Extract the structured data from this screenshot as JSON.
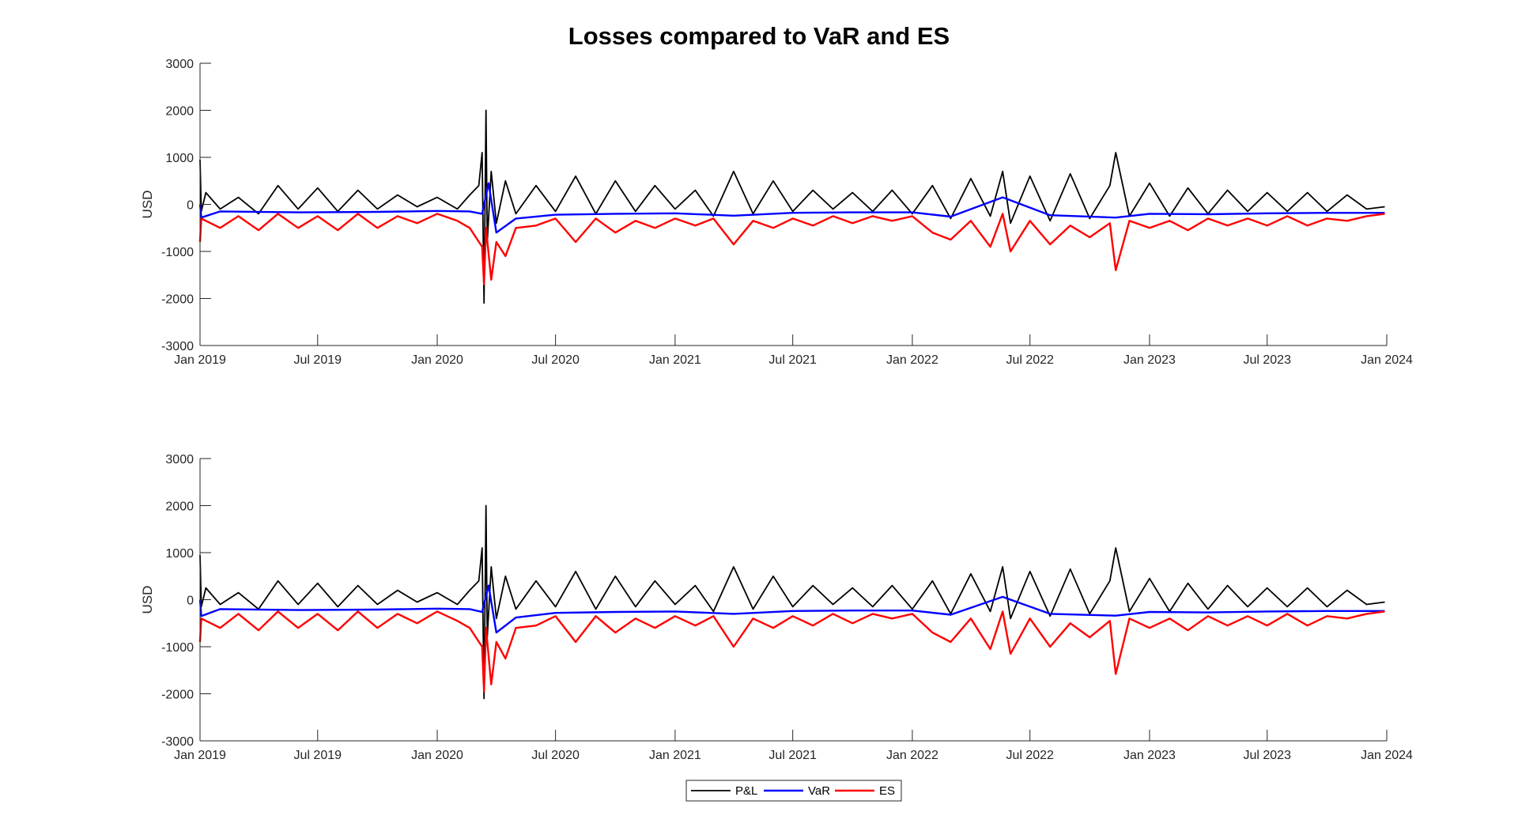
{
  "title": "Losses compared to VaR and ES",
  "colors": {
    "pnl": "#000000",
    "var": "#0000FF",
    "es": "#FF0000",
    "axis": "#262626"
  },
  "legend": {
    "entries": [
      "P&L",
      "VaR",
      "ES"
    ],
    "placement": "bottom-center"
  },
  "chart_data": [
    {
      "type": "line",
      "xlabel": "",
      "ylabel": "USD",
      "xlim": [
        "2019-01-01",
        "2024-01-01"
      ],
      "ylim": [
        -3000,
        3000
      ],
      "yticks": [
        -3000,
        -2000,
        -1000,
        0,
        1000,
        2000,
        3000
      ],
      "xticks": [
        "2019-01-01",
        "2019-07-01",
        "2020-01-01",
        "2020-07-01",
        "2021-01-01",
        "2021-07-01",
        "2022-01-01",
        "2022-07-01",
        "2023-01-01",
        "2023-07-01",
        "2024-01-01"
      ],
      "xtick_labels": [
        "Jan 2019",
        "Jul 2019",
        "Jan 2020",
        "Jul 2020",
        "Jan 2021",
        "Jul 2021",
        "Jan 2022",
        "Jul 2022",
        "Jan 2023",
        "Jul 2023",
        "Jan 2024"
      ],
      "grid": false,
      "series": [
        {
          "name": "P&L",
          "color": "#000000",
          "x": [
            "2019-01-01",
            "2019-01-03",
            "2019-01-10",
            "2019-02-01",
            "2019-03-01",
            "2019-04-01",
            "2019-05-01",
            "2019-06-01",
            "2019-07-01",
            "2019-08-01",
            "2019-09-01",
            "2019-10-01",
            "2019-11-01",
            "2019-12-01",
            "2020-01-01",
            "2020-02-01",
            "2020-02-20",
            "2020-03-05",
            "2020-03-10",
            "2020-03-13",
            "2020-03-16",
            "2020-03-18",
            "2020-03-24",
            "2020-04-01",
            "2020-04-15",
            "2020-05-01",
            "2020-06-01",
            "2020-07-01",
            "2020-08-01",
            "2020-09-01",
            "2020-10-01",
            "2020-11-01",
            "2020-12-01",
            "2021-01-01",
            "2021-02-01",
            "2021-03-01",
            "2021-04-01",
            "2021-05-01",
            "2021-06-01",
            "2021-07-01",
            "2021-08-01",
            "2021-09-01",
            "2021-10-01",
            "2021-11-01",
            "2021-12-01",
            "2022-01-01",
            "2022-02-01",
            "2022-03-01",
            "2022-04-01",
            "2022-05-01",
            "2022-05-20",
            "2022-06-01",
            "2022-07-01",
            "2022-08-01",
            "2022-09-01",
            "2022-10-01",
            "2022-11-01",
            "2022-11-10",
            "2022-12-01",
            "2023-01-01",
            "2023-02-01",
            "2023-03-01",
            "2023-04-01",
            "2023-05-01",
            "2023-06-01",
            "2023-07-01",
            "2023-08-01",
            "2023-09-01",
            "2023-10-01",
            "2023-11-01",
            "2023-12-01",
            "2023-12-29"
          ],
          "y": [
            950,
            -150,
            250,
            -100,
            150,
            -200,
            400,
            -100,
            350,
            -150,
            300,
            -100,
            200,
            -50,
            150,
            -100,
            200,
            400,
            1100,
            -2100,
            2000,
            -800,
            700,
            -400,
            500,
            -200,
            400,
            -150,
            600,
            -200,
            500,
            -150,
            400,
            -100,
            300,
            -250,
            700,
            -200,
            500,
            -150,
            300,
            -100,
            250,
            -150,
            300,
            -200,
            400,
            -300,
            550,
            -250,
            700,
            -400,
            600,
            -350,
            650,
            -300,
            400,
            1100,
            -250,
            450,
            -250,
            350,
            -200,
            300,
            -150,
            250,
            -150,
            250,
            -150,
            200,
            -100,
            -50
          ]
        },
        {
          "name": "VaR",
          "color": "#0000FF",
          "x": [
            "2019-01-01",
            "2019-01-03",
            "2019-02-01",
            "2019-06-01",
            "2019-10-01",
            "2020-01-01",
            "2020-02-20",
            "2020-03-10",
            "2020-03-20",
            "2020-04-01",
            "2020-05-01",
            "2020-07-01",
            "2020-10-01",
            "2021-01-01",
            "2021-04-01",
            "2021-07-01",
            "2021-10-01",
            "2022-01-01",
            "2022-03-01",
            "2022-05-20",
            "2022-08-01",
            "2022-11-10",
            "2023-01-01",
            "2023-04-01",
            "2023-07-01",
            "2023-10-01",
            "2023-12-29"
          ],
          "y": [
            0,
            -280,
            -150,
            -170,
            -160,
            -140,
            -150,
            -200,
            450,
            -600,
            -300,
            -220,
            -200,
            -190,
            -240,
            -180,
            -170,
            -170,
            -260,
            150,
            -230,
            -280,
            -200,
            -210,
            -190,
            -180,
            -180
          ]
        },
        {
          "name": "ES",
          "color": "#FF0000",
          "x": [
            "2019-01-01",
            "2019-01-03",
            "2019-02-01",
            "2019-03-01",
            "2019-04-01",
            "2019-05-01",
            "2019-06-01",
            "2019-07-01",
            "2019-08-01",
            "2019-09-01",
            "2019-10-01",
            "2019-11-01",
            "2019-12-01",
            "2020-01-01",
            "2020-02-01",
            "2020-02-20",
            "2020-03-10",
            "2020-03-13",
            "2020-03-16",
            "2020-03-24",
            "2020-04-01",
            "2020-04-15",
            "2020-05-01",
            "2020-06-01",
            "2020-07-01",
            "2020-08-01",
            "2020-09-01",
            "2020-10-01",
            "2020-11-01",
            "2020-12-01",
            "2021-01-01",
            "2021-02-01",
            "2021-03-01",
            "2021-04-01",
            "2021-05-01",
            "2021-06-01",
            "2021-07-01",
            "2021-08-01",
            "2021-09-01",
            "2021-10-01",
            "2021-11-01",
            "2021-12-01",
            "2022-01-01",
            "2022-02-01",
            "2022-03-01",
            "2022-04-01",
            "2022-05-01",
            "2022-05-20",
            "2022-06-01",
            "2022-07-01",
            "2022-08-01",
            "2022-09-01",
            "2022-10-01",
            "2022-11-01",
            "2022-11-10",
            "2022-12-01",
            "2023-01-01",
            "2023-02-01",
            "2023-03-01",
            "2023-04-01",
            "2023-05-01",
            "2023-06-01",
            "2023-07-01",
            "2023-08-01",
            "2023-09-01",
            "2023-10-01",
            "2023-11-01",
            "2023-12-01",
            "2023-12-29"
          ],
          "y": [
            -800,
            -300,
            -500,
            -250,
            -550,
            -200,
            -500,
            -250,
            -550,
            -200,
            -500,
            -250,
            -400,
            -200,
            -350,
            -500,
            -900,
            -1700,
            -500,
            -1600,
            -800,
            -1100,
            -500,
            -450,
            -300,
            -800,
            -300,
            -600,
            -350,
            -500,
            -300,
            -450,
            -300,
            -850,
            -350,
            -500,
            -300,
            -450,
            -250,
            -400,
            -250,
            -350,
            -250,
            -600,
            -750,
            -350,
            -900,
            -200,
            -1000,
            -350,
            -850,
            -450,
            -700,
            -400,
            -1400,
            -350,
            -500,
            -350,
            -550,
            -300,
            -450,
            -300,
            -450,
            -250,
            -450,
            -300,
            -350,
            -250,
            -200
          ]
        }
      ]
    },
    {
      "type": "line",
      "xlabel": "",
      "ylabel": "USD",
      "xlim": [
        "2019-01-01",
        "2024-01-01"
      ],
      "ylim": [
        -3000,
        3000
      ],
      "yticks": [
        -3000,
        -2000,
        -1000,
        0,
        1000,
        2000,
        3000
      ],
      "xticks": [
        "2019-01-01",
        "2019-07-01",
        "2020-01-01",
        "2020-07-01",
        "2021-01-01",
        "2021-07-01",
        "2022-01-01",
        "2022-07-01",
        "2023-01-01",
        "2023-07-01",
        "2024-01-01"
      ],
      "xtick_labels": [
        "Jan 2019",
        "Jul 2019",
        "Jan 2020",
        "Jul 2020",
        "Jan 2021",
        "Jul 2021",
        "Jan 2022",
        "Jul 2022",
        "Jan 2023",
        "Jul 2023",
        "Jan 2024"
      ],
      "grid": false,
      "series": [
        {
          "name": "P&L",
          "color": "#000000",
          "x": [
            "2019-01-01",
            "2019-01-03",
            "2019-01-10",
            "2019-02-01",
            "2019-03-01",
            "2019-04-01",
            "2019-05-01",
            "2019-06-01",
            "2019-07-01",
            "2019-08-01",
            "2019-09-01",
            "2019-10-01",
            "2019-11-01",
            "2019-12-01",
            "2020-01-01",
            "2020-02-01",
            "2020-02-20",
            "2020-03-05",
            "2020-03-10",
            "2020-03-13",
            "2020-03-16",
            "2020-03-18",
            "2020-03-24",
            "2020-04-01",
            "2020-04-15",
            "2020-05-01",
            "2020-06-01",
            "2020-07-01",
            "2020-08-01",
            "2020-09-01",
            "2020-10-01",
            "2020-11-01",
            "2020-12-01",
            "2021-01-01",
            "2021-02-01",
            "2021-03-01",
            "2021-04-01",
            "2021-05-01",
            "2021-06-01",
            "2021-07-01",
            "2021-08-01",
            "2021-09-01",
            "2021-10-01",
            "2021-11-01",
            "2021-12-01",
            "2022-01-01",
            "2022-02-01",
            "2022-03-01",
            "2022-04-01",
            "2022-05-01",
            "2022-05-20",
            "2022-06-01",
            "2022-07-01",
            "2022-08-01",
            "2022-09-01",
            "2022-10-01",
            "2022-11-01",
            "2022-11-10",
            "2022-12-01",
            "2023-01-01",
            "2023-02-01",
            "2023-03-01",
            "2023-04-01",
            "2023-05-01",
            "2023-06-01",
            "2023-07-01",
            "2023-08-01",
            "2023-09-01",
            "2023-10-01",
            "2023-11-01",
            "2023-12-01",
            "2023-12-29"
          ],
          "y": [
            950,
            -150,
            250,
            -100,
            150,
            -200,
            400,
            -100,
            350,
            -150,
            300,
            -100,
            200,
            -50,
            150,
            -100,
            200,
            400,
            1100,
            -2100,
            2000,
            -800,
            700,
            -400,
            500,
            -200,
            400,
            -150,
            600,
            -200,
            500,
            -150,
            400,
            -100,
            300,
            -250,
            700,
            -200,
            500,
            -150,
            300,
            -100,
            250,
            -150,
            300,
            -200,
            400,
            -300,
            550,
            -250,
            700,
            -400,
            600,
            -350,
            650,
            -300,
            400,
            1100,
            -250,
            450,
            -250,
            350,
            -200,
            300,
            -150,
            250,
            -150,
            250,
            -150,
            200,
            -100,
            -50
          ]
        },
        {
          "name": "VaR",
          "color": "#0000FF",
          "x": [
            "2019-01-01",
            "2019-01-03",
            "2019-02-01",
            "2019-06-01",
            "2019-10-01",
            "2020-01-01",
            "2020-02-20",
            "2020-03-10",
            "2020-03-20",
            "2020-04-01",
            "2020-05-01",
            "2020-07-01",
            "2020-10-01",
            "2021-01-01",
            "2021-04-01",
            "2021-07-01",
            "2021-10-01",
            "2022-01-01",
            "2022-03-01",
            "2022-05-20",
            "2022-08-01",
            "2022-11-10",
            "2023-01-01",
            "2023-04-01",
            "2023-07-01",
            "2023-10-01",
            "2023-12-29"
          ],
          "y": [
            0,
            -350,
            -200,
            -220,
            -210,
            -190,
            -200,
            -260,
            300,
            -700,
            -380,
            -280,
            -260,
            -250,
            -300,
            -240,
            -230,
            -230,
            -320,
            60,
            -300,
            -340,
            -260,
            -270,
            -250,
            -240,
            -240
          ]
        },
        {
          "name": "ES",
          "color": "#FF0000",
          "x": [
            "2019-01-01",
            "2019-01-03",
            "2019-02-01",
            "2019-03-01",
            "2019-04-01",
            "2019-05-01",
            "2019-06-01",
            "2019-07-01",
            "2019-08-01",
            "2019-09-01",
            "2019-10-01",
            "2019-11-01",
            "2019-12-01",
            "2020-01-01",
            "2020-02-01",
            "2020-02-20",
            "2020-03-10",
            "2020-03-13",
            "2020-03-16",
            "2020-03-24",
            "2020-04-01",
            "2020-04-15",
            "2020-05-01",
            "2020-06-01",
            "2020-07-01",
            "2020-08-01",
            "2020-09-01",
            "2020-10-01",
            "2020-11-01",
            "2020-12-01",
            "2021-01-01",
            "2021-02-01",
            "2021-03-01",
            "2021-04-01",
            "2021-05-01",
            "2021-06-01",
            "2021-07-01",
            "2021-08-01",
            "2021-09-01",
            "2021-10-01",
            "2021-11-01",
            "2021-12-01",
            "2022-01-01",
            "2022-02-01",
            "2022-03-01",
            "2022-04-01",
            "2022-05-01",
            "2022-05-20",
            "2022-06-01",
            "2022-07-01",
            "2022-08-01",
            "2022-09-01",
            "2022-10-01",
            "2022-11-01",
            "2022-11-10",
            "2022-12-01",
            "2023-01-01",
            "2023-02-01",
            "2023-03-01",
            "2023-04-01",
            "2023-05-01",
            "2023-06-01",
            "2023-07-01",
            "2023-08-01",
            "2023-09-01",
            "2023-10-01",
            "2023-11-01",
            "2023-12-01",
            "2023-12-29"
          ],
          "y": [
            -900,
            -400,
            -600,
            -300,
            -650,
            -250,
            -600,
            -300,
            -650,
            -250,
            -600,
            -300,
            -500,
            -250,
            -450,
            -600,
            -1000,
            -1950,
            -600,
            -1800,
            -900,
            -1250,
            -600,
            -550,
            -350,
            -900,
            -350,
            -700,
            -400,
            -600,
            -350,
            -550,
            -350,
            -1000,
            -400,
            -600,
            -350,
            -550,
            -300,
            -500,
            -300,
            -400,
            -300,
            -700,
            -900,
            -400,
            -1050,
            -250,
            -1150,
            -400,
            -1000,
            -500,
            -800,
            -450,
            -1580,
            -400,
            -600,
            -400,
            -650,
            -350,
            -550,
            -350,
            -550,
            -300,
            -550,
            -350,
            -400,
            -300,
            -250
          ]
        }
      ]
    }
  ]
}
